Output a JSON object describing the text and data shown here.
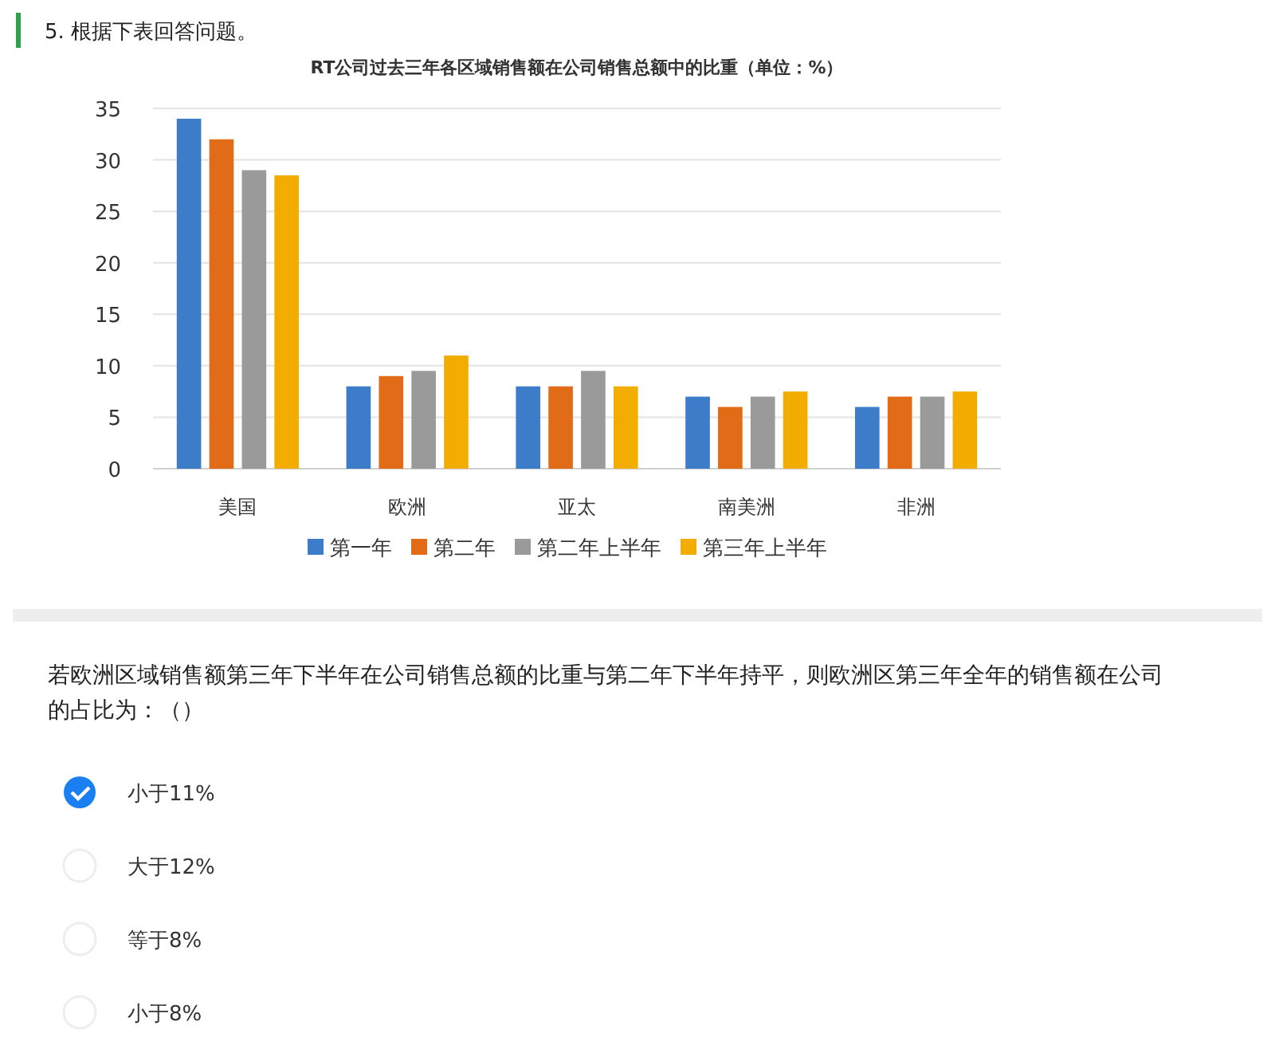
{
  "chart_data": {
    "type": "bar",
    "title": "RT公司过去三年各区域销售额在公司销售总额中的比重（单位：%）",
    "categories": [
      "美国",
      "欧洲",
      "亚太",
      "南美洲",
      "非洲"
    ],
    "series": [
      {
        "name": "第一年",
        "color": "#3d7cc9",
        "values": [
          34,
          8,
          8,
          7,
          6
        ]
      },
      {
        "name": "第二年",
        "color": "#e26b17",
        "values": [
          32,
          9,
          8,
          6,
          7
        ]
      },
      {
        "name": "第二年上半年",
        "color": "#9a9a9a",
        "values": [
          29,
          9.5,
          9.5,
          7,
          7
        ]
      },
      {
        "name": "第三年上半年",
        "color": "#f2ad00",
        "values": [
          28.5,
          11,
          8,
          7.5,
          7.5
        ]
      }
    ],
    "ylim": [
      0,
      35
    ],
    "yticks": [
      0,
      5,
      10,
      15,
      20,
      25,
      30,
      35
    ],
    "grid": "y",
    "legend": "bottom",
    "annotations": [
      "5. 根据下表回答问题。",
      "若欧洲区域销售额第三年下半年在公司销售总额的比重与第二年下半年持平，则欧洲区第三年全年的销售额在公司的占比为：（）",
      "小于11%",
      "大于12%",
      "等于8%",
      "小于8%"
    ]
  }
}
